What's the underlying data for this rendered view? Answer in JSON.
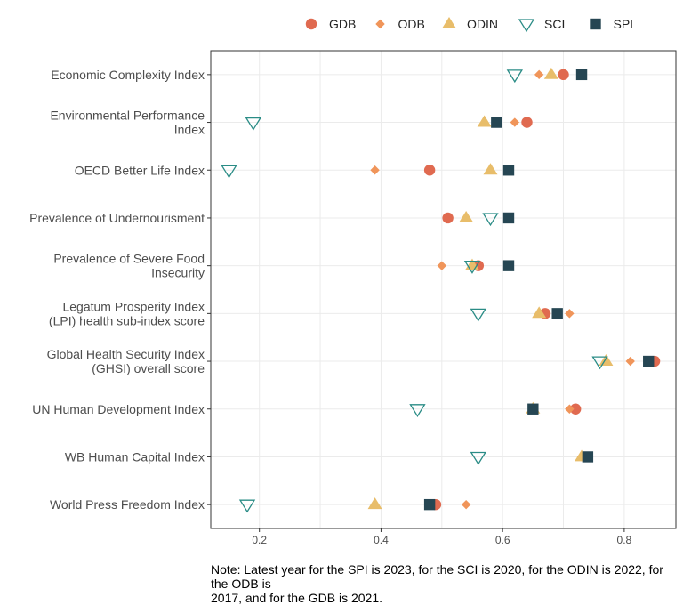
{
  "chart_data": {
    "type": "scatter",
    "title": "",
    "xlabel": "",
    "ylabel": "",
    "xlim": [
      0.12,
      0.885
    ],
    "x_ticks": [
      0.2,
      0.4,
      0.6,
      0.8
    ],
    "x_tick_labels": [
      "0.2",
      "0.4",
      "0.6",
      "0.8"
    ],
    "grid": true,
    "legend_position": "top",
    "categories": [
      "Economic Complexity Index",
      "Environmental Performance\nIndex",
      "OECD Better Life Index",
      "Prevalence of Undernourisment",
      "Prevalence of Severe Food\nInsecurity",
      "Legatum Prosperity Index\n(LPI) health sub-index score",
      "Global Health Security Index\n(GHSI) overall score",
      "UN Human Development Index",
      "WB Human Capital Index",
      "World Press Freedom Index"
    ],
    "series": [
      {
        "name": "GDB",
        "color": "#e06a50",
        "marker": "circle",
        "values": [
          0.7,
          0.64,
          0.48,
          0.51,
          0.56,
          0.67,
          0.85,
          0.72,
          null,
          0.49
        ]
      },
      {
        "name": "ODB",
        "color": "#f0955a",
        "marker": "diamond",
        "values": [
          0.66,
          0.62,
          0.39,
          null,
          0.5,
          0.71,
          0.81,
          0.71,
          0.73,
          0.54
        ]
      },
      {
        "name": "ODIN",
        "color": "#e8bd6a",
        "marker": "triangle",
        "values": [
          0.68,
          0.57,
          0.58,
          0.54,
          0.55,
          0.66,
          0.77,
          0.65,
          0.73,
          0.39
        ]
      },
      {
        "name": "SCI",
        "color": "#2a8c86",
        "marker": "triangle-down",
        "values": [
          0.62,
          0.19,
          0.15,
          0.58,
          0.55,
          0.56,
          0.76,
          0.46,
          0.56,
          0.18
        ]
      },
      {
        "name": "SPI",
        "color": "#264653",
        "marker": "square",
        "values": [
          0.73,
          0.59,
          0.61,
          0.61,
          0.61,
          0.69,
          0.84,
          0.65,
          0.74,
          0.48
        ]
      }
    ]
  },
  "note": "Note: Latest year for the SPI is 2023, for the SCI is 2020, for the ODIN is 2022, for the ODB is\n2017, and for the GDB is 2021."
}
